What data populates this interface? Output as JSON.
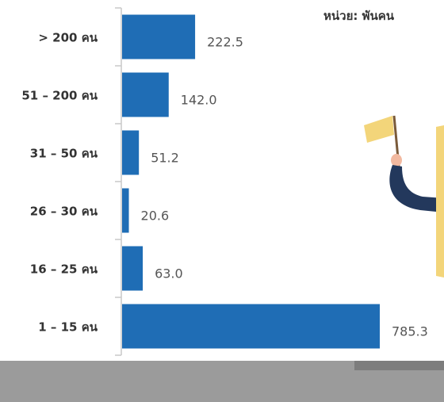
{
  "unit_label": "หน่วย: พันคน",
  "colors": {
    "bar": "#1f6db5",
    "axis": "#c8c8c8",
    "band": "#9b9b9b"
  },
  "chart_data": {
    "type": "bar",
    "orientation": "horizontal",
    "title": "",
    "unit": "หน่วย: พันคน",
    "categories": [
      "> 200 คน",
      "51 – 200 คน",
      "31 – 50 คน",
      "26 – 30 คน",
      "16 – 25 คน",
      "1 – 15 คน"
    ],
    "values": [
      222.5,
      142.0,
      51.2,
      20.6,
      63.0,
      785.3
    ],
    "value_labels": [
      "222.5",
      "142.0",
      "51.2",
      "20.6",
      "63.0",
      "785.3"
    ],
    "xlim": [
      0,
      785.3
    ],
    "grid": false,
    "legend": "none"
  }
}
